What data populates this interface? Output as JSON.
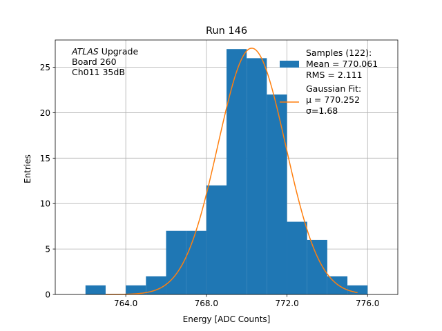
{
  "chart_data": {
    "type": "bar",
    "title": "Run 146",
    "xlabel": "Energy [ADC Counts]",
    "ylabel": "Entries",
    "xlim": [
      760.5,
      777.5
    ],
    "ylim": [
      0,
      28
    ],
    "grid": true,
    "x_ticks": [
      764,
      768,
      772,
      776
    ],
    "x_tick_labels": [
      "764.0",
      "768.0",
      "772.0",
      "776.0"
    ],
    "y_ticks": [
      0,
      5,
      10,
      15,
      20,
      25
    ],
    "y_tick_labels": [
      "0",
      "5",
      "10",
      "15",
      "20",
      "25"
    ],
    "bin_width": 1,
    "bins": [
      {
        "x0": 762,
        "value": 1
      },
      {
        "x0": 763,
        "value": 0
      },
      {
        "x0": 764,
        "value": 1
      },
      {
        "x0": 765,
        "value": 2
      },
      {
        "x0": 766,
        "value": 7
      },
      {
        "x0": 767,
        "value": 7
      },
      {
        "x0": 768,
        "value": 12
      },
      {
        "x0": 769,
        "value": 27
      },
      {
        "x0": 770,
        "value": 26
      },
      {
        "x0": 771,
        "value": 22
      },
      {
        "x0": 772,
        "value": 8
      },
      {
        "x0": 773,
        "value": 6
      },
      {
        "x0": 774,
        "value": 2
      },
      {
        "x0": 775,
        "value": 1
      }
    ],
    "fit": {
      "type": "gaussian",
      "mu": 770.252,
      "sigma": 1.68,
      "amplitude": 27.1,
      "x_range": [
        763.0,
        775.5
      ]
    },
    "colors": {
      "bars": "#1f77b4",
      "fit": "#ff7f0e",
      "grid": "#b0b0b0"
    },
    "annotation": {
      "lines": [
        {
          "italic": "ATLAS",
          "rest": " Upgrade"
        },
        {
          "italic": "",
          "rest": " Board 260"
        },
        {
          "italic": "",
          "rest": " Ch011 35dB"
        }
      ]
    },
    "legend": {
      "placement": "top-right",
      "samples": [
        "Samples (122):",
        " Mean = 770.061",
        " RMS = 2.111"
      ],
      "fit": [
        "Gaussian Fit:",
        " μ = 770.252",
        " σ=1.68"
      ]
    }
  }
}
